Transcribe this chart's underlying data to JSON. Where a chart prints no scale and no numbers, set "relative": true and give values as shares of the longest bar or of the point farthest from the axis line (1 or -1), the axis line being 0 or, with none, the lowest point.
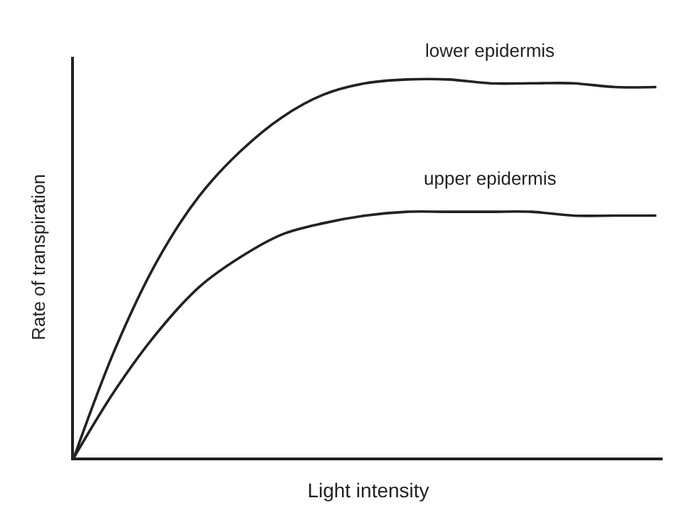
{
  "chart_data": {
    "type": "line",
    "relative": true,
    "xlabel": "Light intensity",
    "ylabel": "Rate of transpiration",
    "categories": [
      null,
      null,
      null,
      null,
      null,
      null,
      null,
      null,
      null,
      null,
      null,
      null,
      null,
      null,
      null
    ],
    "series": [
      {
        "name": "lower epidermis",
        "color": "#222222",
        "values": [
          0,
          0.29,
          0.52,
          0.69,
          0.81,
          0.9,
          0.96,
          0.99,
          1.0,
          1.0,
          0.99,
          0.99,
          0.99,
          0.98,
          0.98
        ]
      },
      {
        "name": "upper epidermis",
        "color": "#222222",
        "values": [
          0,
          0.18,
          0.33,
          0.45,
          0.53,
          0.59,
          0.62,
          0.64,
          0.65,
          0.65,
          0.65,
          0.65,
          0.64,
          0.64,
          0.64
        ]
      }
    ],
    "legend": false,
    "marker": "none",
    "line_style": "solid"
  }
}
